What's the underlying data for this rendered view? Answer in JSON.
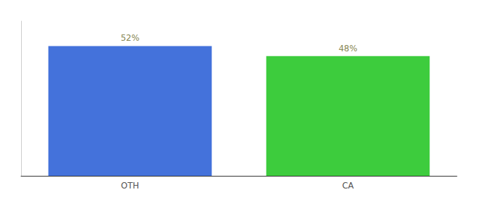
{
  "chart_data": {
    "type": "bar",
    "categories": [
      "OTH",
      "CA"
    ],
    "values": [
      52,
      48
    ],
    "value_labels": [
      "52%",
      "48%"
    ],
    "colors": [
      "#4472db",
      "#3dcc3d"
    ],
    "ylim": [
      0,
      62
    ],
    "data_labels": true,
    "tick_labels": "x",
    "grid": false
  }
}
